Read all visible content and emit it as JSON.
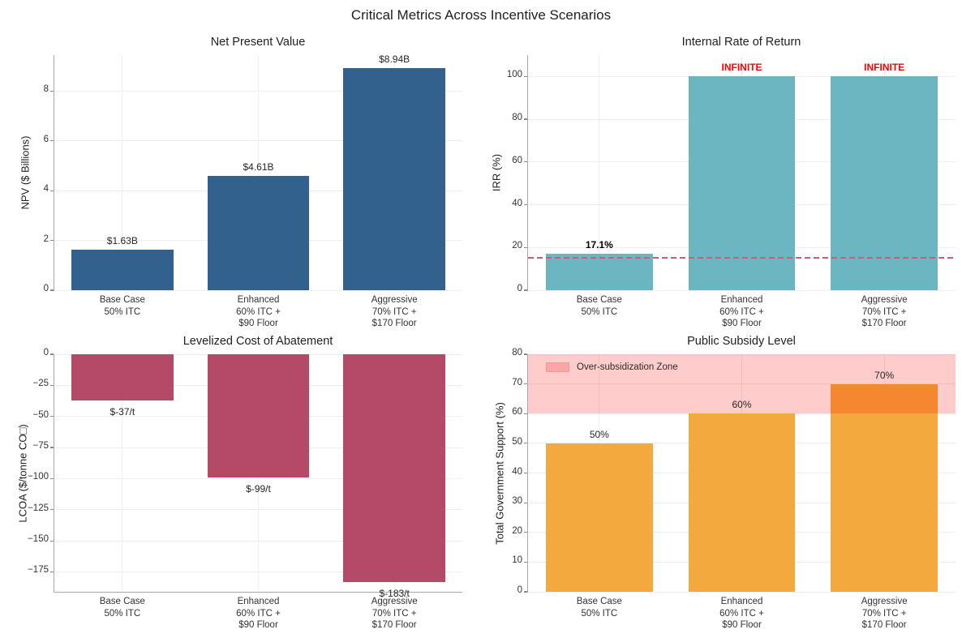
{
  "figure": {
    "title": "Critical Metrics Across Incentive Scenarios",
    "background": "#ffffff"
  },
  "chart_data": [
    {
      "type": "bar",
      "title": "Net Present Value",
      "ylabel": "NPV ($ Billions)",
      "categories": [
        "Base Case\n50% ITC",
        "Enhanced\n60% ITC +\n$90 Floor",
        "Aggressive\n70% ITC +\n$170 Floor"
      ],
      "values": [
        1.63,
        4.61,
        8.94
      ],
      "bar_labels": [
        {
          "text": "$1.63B",
          "color": "#262626",
          "bold": false
        },
        {
          "text": "$4.61B",
          "color": "#262626",
          "bold": false
        },
        {
          "text": "$8.94B",
          "color": "#262626",
          "bold": false
        }
      ],
      "bar_color": "#31618C",
      "ylim": [
        0,
        9.45
      ],
      "yticks": [
        0,
        2,
        4,
        6,
        8
      ],
      "grid": true,
      "legend_position": "none"
    },
    {
      "type": "bar",
      "title": "Internal Rate of Return",
      "ylabel": "IRR (%)",
      "categories": [
        "Base Case\n50% ITC",
        "Enhanced\n60% ITC +\n$90 Floor",
        "Aggressive\n70% ITC +\n$170 Floor"
      ],
      "values": [
        17.1,
        100,
        100
      ],
      "bar_labels": [
        {
          "text": "17.1%",
          "color": "#000000",
          "bold": true
        },
        {
          "text": "INFINITE",
          "color": "#FF0000",
          "bold": true
        },
        {
          "text": "INFINITE",
          "color": "#FF0000",
          "bold": true
        }
      ],
      "bar_color": "#6CB6C2",
      "hline": {
        "y": 15,
        "color": "#C4607A",
        "style": "dashed"
      },
      "ylim": [
        0,
        110
      ],
      "yticks": [
        0,
        20,
        40,
        60,
        80,
        100
      ],
      "grid": true,
      "legend_position": "none"
    },
    {
      "type": "bar",
      "title": "Levelized Cost of Abatement",
      "ylabel": "LCOA ($/tonne CO□)",
      "categories": [
        "Base Case\n50% ITC",
        "Enhanced\n60% ITC +\n$90 Floor",
        "Aggressive\n70% ITC +\n$170 Floor"
      ],
      "values": [
        -37,
        -99,
        -183
      ],
      "bar_labels": [
        {
          "text": "$-37/t",
          "color": "#262626",
          "bold": false
        },
        {
          "text": "$-99/t",
          "color": "#262626",
          "bold": false
        },
        {
          "text": "$-183/t",
          "color": "#262626",
          "bold": false
        }
      ],
      "bar_color": "#B54A68",
      "ylim": [
        -191,
        0
      ],
      "yticks": [
        0,
        -25,
        -50,
        -75,
        -100,
        -125,
        -150,
        -175
      ],
      "grid": true,
      "legend_position": "none"
    },
    {
      "type": "bar",
      "title": "Public Subsidy Level",
      "ylabel": "Total Government Support (%)",
      "categories": [
        "Base Case\n50% ITC",
        "Enhanced\n60% ITC +\n$90 Floor",
        "Aggressive\n70% ITC +\n$170 Floor"
      ],
      "values": [
        50,
        60,
        70
      ],
      "bar_labels": [
        {
          "text": "50%",
          "color": "#262626",
          "bold": false
        },
        {
          "text": "60%",
          "color": "#262626",
          "bold": false
        },
        {
          "text": "70%",
          "color": "#262626",
          "bold": false
        }
      ],
      "bar_color": "#F4A93E",
      "zone": {
        "from": 60,
        "to": 80,
        "color": "rgba(255,0,0,0.2)",
        "legend_label": "Over-subsidization Zone"
      },
      "ylim": [
        0,
        80
      ],
      "yticks": [
        0,
        10,
        20,
        30,
        40,
        50,
        60,
        70,
        80
      ],
      "grid": true,
      "legend_position": "upper-left"
    }
  ]
}
